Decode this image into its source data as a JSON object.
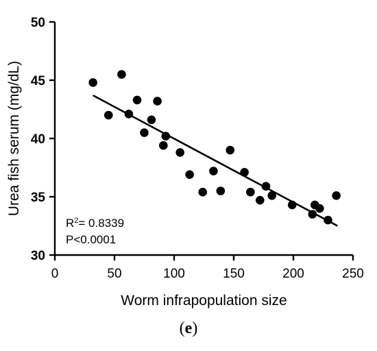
{
  "chart_data": {
    "type": "scatter",
    "xlabel": "Worm infrapopulation size",
    "ylabel": "Urea fish serum (mg/dL)",
    "xlim": [
      0,
      250
    ],
    "ylim": [
      30,
      50
    ],
    "x_ticks": [
      0,
      50,
      100,
      150,
      200,
      250
    ],
    "y_ticks": [
      30,
      35,
      40,
      45,
      50
    ],
    "grid": false,
    "marker": "filled-circle",
    "marker_color": "#000000",
    "points": [
      {
        "x": 32,
        "y": 44.8
      },
      {
        "x": 45,
        "y": 42.0
      },
      {
        "x": 56,
        "y": 45.5
      },
      {
        "x": 62,
        "y": 42.1
      },
      {
        "x": 69,
        "y": 43.3
      },
      {
        "x": 75,
        "y": 40.5
      },
      {
        "x": 81,
        "y": 41.6
      },
      {
        "x": 86,
        "y": 43.2
      },
      {
        "x": 91,
        "y": 39.4
      },
      {
        "x": 93,
        "y": 40.2
      },
      {
        "x": 105,
        "y": 38.8
      },
      {
        "x": 113,
        "y": 36.9
      },
      {
        "x": 124,
        "y": 35.4
      },
      {
        "x": 133,
        "y": 37.2
      },
      {
        "x": 139,
        "y": 35.5
      },
      {
        "x": 147,
        "y": 39.0
      },
      {
        "x": 159,
        "y": 37.1
      },
      {
        "x": 164,
        "y": 35.4
      },
      {
        "x": 172,
        "y": 34.7
      },
      {
        "x": 177,
        "y": 35.9
      },
      {
        "x": 182,
        "y": 35.1
      },
      {
        "x": 199,
        "y": 34.3
      },
      {
        "x": 216,
        "y": 33.5
      },
      {
        "x": 218,
        "y": 34.3
      },
      {
        "x": 222,
        "y": 34.0
      },
      {
        "x": 229,
        "y": 33.0
      },
      {
        "x": 236,
        "y": 35.1
      }
    ],
    "fit_line": {
      "x": [
        32,
        237
      ],
      "y": [
        43.7,
        32.5
      ]
    },
    "annotations": {
      "r2_prefix": "R",
      "r2_sup": "2",
      "r2_suffix": "= 0.8339",
      "p_value": "P<0.0001"
    }
  },
  "panel_label": {
    "open": "(",
    "letter": "e",
    "close": ")"
  }
}
